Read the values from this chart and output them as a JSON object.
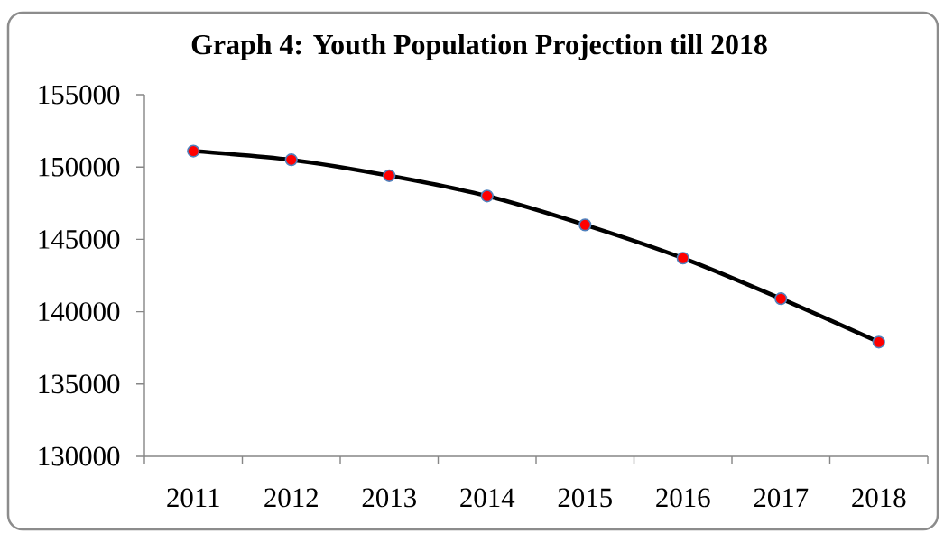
{
  "chart_data": {
    "type": "line",
    "title": "Graph 4: Youth Population Projection till 2018",
    "categories": [
      "2011",
      "2012",
      "2013",
      "2014",
      "2015",
      "2016",
      "2017",
      "2018"
    ],
    "series": [
      {
        "color": "#000000",
        "colors": [
          "#ff0000",
          "#ff0000",
          "#ff0000",
          "#ff0000",
          "#ff0000",
          "#ff0000",
          "#ff0000",
          "#ff0000"
        ],
        "values": [
          151100,
          150500,
          149400,
          148000,
          146000,
          143700,
          140900,
          137900
        ]
      }
    ],
    "ylim": [
      130000,
      155000
    ],
    "yticks": [
      130000,
      135000,
      140000,
      145000,
      150000,
      155000
    ],
    "marker": "circle",
    "line_style": "solid",
    "grid": false,
    "legend": false
  }
}
